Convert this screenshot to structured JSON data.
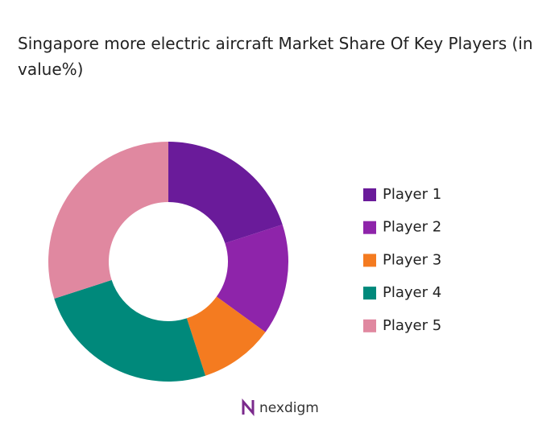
{
  "chart_data": {
    "type": "donut",
    "title": "Singapore more electric aircraft  Market Share Of Key Players (in value%)",
    "categories": [
      "Player 1",
      "Player 2",
      "Player 3",
      "Player 4",
      "Player 5"
    ],
    "values": [
      20,
      15,
      10,
      25,
      30
    ],
    "colors": [
      "#6a1b9a",
      "#8e24aa",
      "#f47b20",
      "#00897b",
      "#e088a0"
    ],
    "legend": "right",
    "watermark": "nexdigm"
  }
}
